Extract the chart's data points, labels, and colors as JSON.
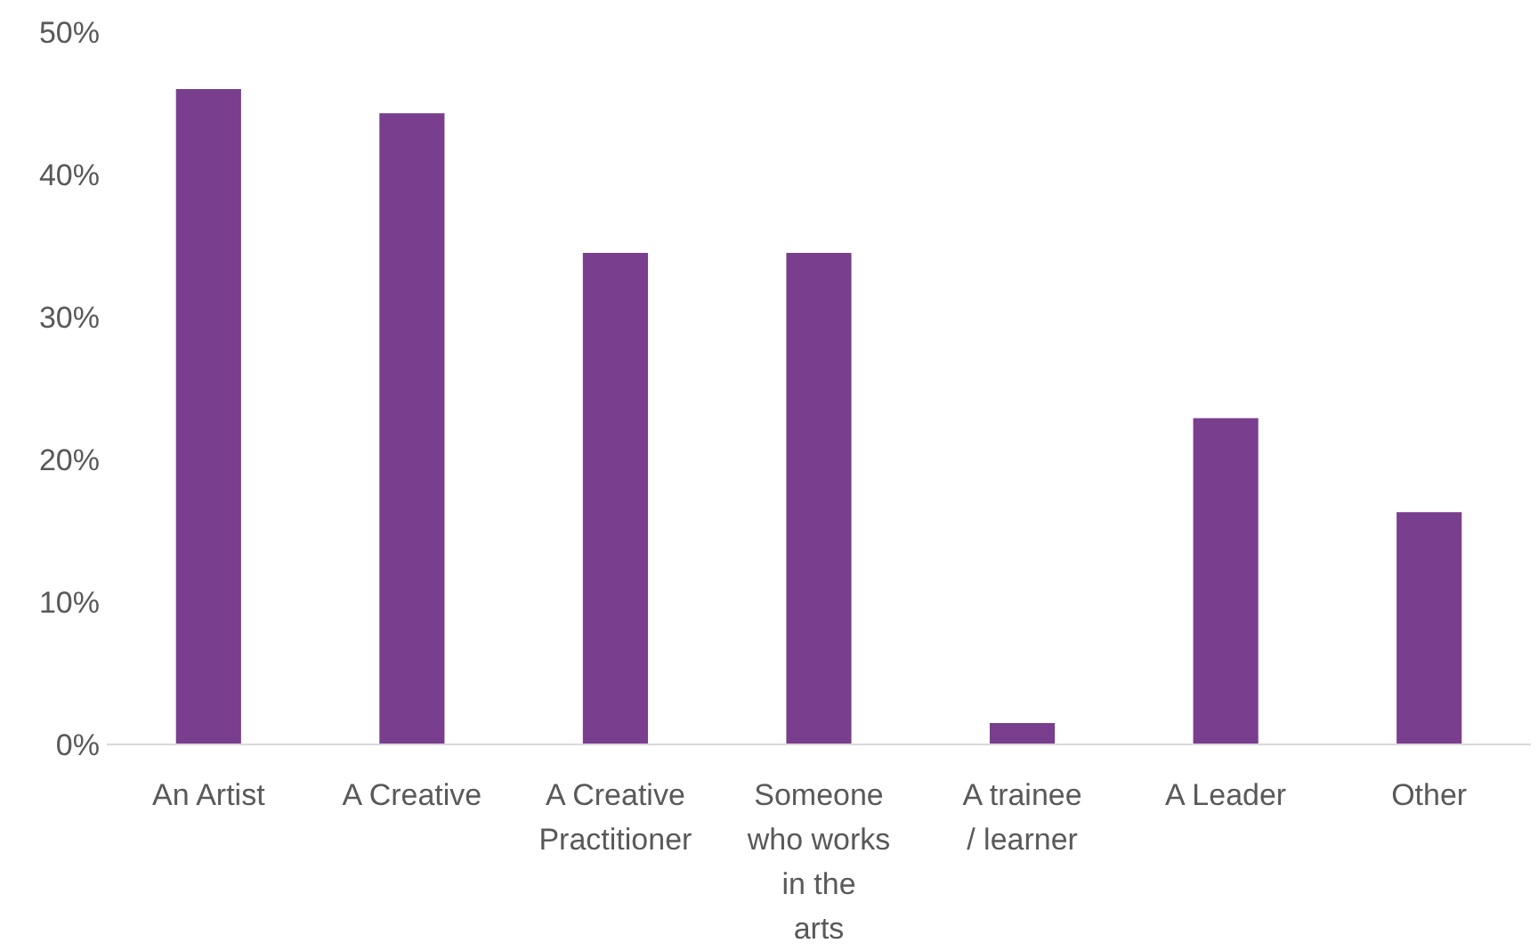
{
  "chart_data": {
    "type": "bar",
    "categories": [
      "An Artist",
      "A Creative",
      "A Creative Practitioner",
      "Someone who works in the arts sector",
      "A trainee / learner",
      "A Leader",
      "Other"
    ],
    "values": [
      46,
      44.3,
      34.5,
      34.5,
      1.5,
      22.9,
      16.3
    ],
    "color": "#7a3e8e",
    "ylim": [
      0,
      50
    ],
    "yticks": [
      {
        "value": 0,
        "label": "0%"
      },
      {
        "value": 10,
        "label": "10%"
      },
      {
        "value": 20,
        "label": "20%"
      },
      {
        "value": 30,
        "label": "30%"
      },
      {
        "value": 40,
        "label": "40%"
      },
      {
        "value": 50,
        "label": "50%"
      }
    ],
    "grid": false
  }
}
